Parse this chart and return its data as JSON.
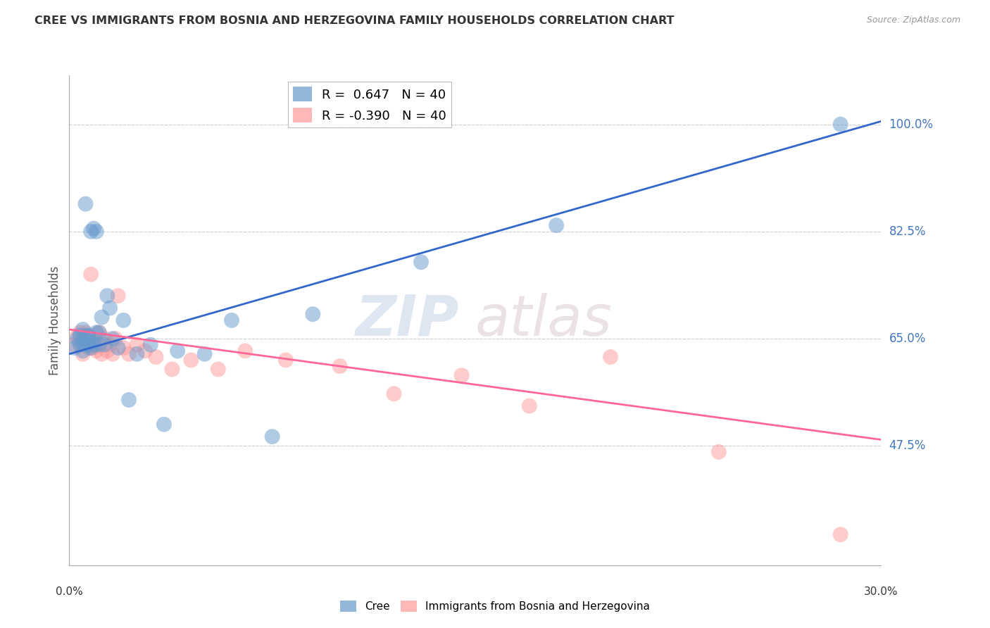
{
  "title": "CREE VS IMMIGRANTS FROM BOSNIA AND HERZEGOVINA FAMILY HOUSEHOLDS CORRELATION CHART",
  "source": "Source: ZipAtlas.com",
  "ylabel": "Family Households",
  "ytick_labels": [
    "100.0%",
    "82.5%",
    "65.0%",
    "47.5%"
  ],
  "ytick_values": [
    1.0,
    0.825,
    0.65,
    0.475
  ],
  "xlim": [
    0.0,
    0.3
  ],
  "ylim": [
    0.28,
    1.08
  ],
  "legend_r_blue": "0.647",
  "legend_r_pink": "-0.390",
  "legend_n": "40",
  "blue_color": "#6699CC",
  "pink_color": "#FF9999",
  "line_blue": "#3366CC",
  "line_pink": "#FF6699",
  "cree_x": [
    0.002,
    0.003,
    0.004,
    0.004,
    0.005,
    0.005,
    0.005,
    0.006,
    0.006,
    0.006,
    0.007,
    0.007,
    0.008,
    0.008,
    0.008,
    0.009,
    0.009,
    0.01,
    0.01,
    0.011,
    0.011,
    0.012,
    0.013,
    0.014,
    0.015,
    0.016,
    0.018,
    0.02,
    0.022,
    0.025,
    0.03,
    0.035,
    0.04,
    0.05,
    0.06,
    0.075,
    0.09,
    0.13,
    0.18,
    0.285
  ],
  "cree_y": [
    0.635,
    0.65,
    0.64,
    0.655,
    0.63,
    0.65,
    0.665,
    0.64,
    0.655,
    0.87,
    0.64,
    0.655,
    0.635,
    0.645,
    0.825,
    0.64,
    0.83,
    0.66,
    0.825,
    0.64,
    0.66,
    0.685,
    0.64,
    0.72,
    0.7,
    0.65,
    0.635,
    0.68,
    0.55,
    0.625,
    0.64,
    0.51,
    0.63,
    0.625,
    0.68,
    0.49,
    0.69,
    0.775,
    0.835,
    1.0
  ],
  "bosnia_x": [
    0.002,
    0.003,
    0.004,
    0.005,
    0.005,
    0.006,
    0.006,
    0.007,
    0.007,
    0.008,
    0.008,
    0.009,
    0.009,
    0.01,
    0.01,
    0.011,
    0.012,
    0.013,
    0.014,
    0.015,
    0.016,
    0.017,
    0.018,
    0.02,
    0.022,
    0.025,
    0.028,
    0.032,
    0.038,
    0.045,
    0.055,
    0.065,
    0.08,
    0.1,
    0.12,
    0.145,
    0.17,
    0.2,
    0.24,
    0.285
  ],
  "bosnia_y": [
    0.64,
    0.655,
    0.66,
    0.645,
    0.625,
    0.66,
    0.64,
    0.635,
    0.655,
    0.64,
    0.755,
    0.635,
    0.65,
    0.63,
    0.64,
    0.66,
    0.625,
    0.65,
    0.63,
    0.64,
    0.625,
    0.65,
    0.72,
    0.635,
    0.625,
    0.64,
    0.63,
    0.62,
    0.6,
    0.615,
    0.6,
    0.63,
    0.615,
    0.605,
    0.56,
    0.59,
    0.54,
    0.62,
    0.465,
    0.33
  ]
}
